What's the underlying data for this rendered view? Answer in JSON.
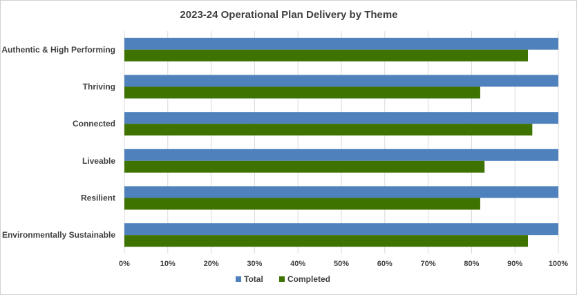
{
  "chart_data": {
    "type": "bar",
    "orientation": "horizontal",
    "title": "2023-24 Operational Plan Delivery by Theme",
    "categories": [
      "Authentic & High Performing",
      "Thriving",
      "Connected",
      "Liveable",
      "Resilient",
      "Environmentally Sustainable"
    ],
    "series": [
      {
        "name": "Total",
        "color": "#4f81bd",
        "values": [
          100,
          100,
          100,
          100,
          100,
          100
        ]
      },
      {
        "name": "Completed",
        "color": "#3f7300",
        "values": [
          93,
          82,
          94,
          83,
          82,
          93
        ]
      }
    ],
    "xlim": [
      0,
      100
    ],
    "x_ticks": [
      "0%",
      "10%",
      "20%",
      "30%",
      "40%",
      "50%",
      "60%",
      "70%",
      "80%",
      "90%",
      "100%"
    ],
    "grid": true,
    "legend": "bottom"
  }
}
